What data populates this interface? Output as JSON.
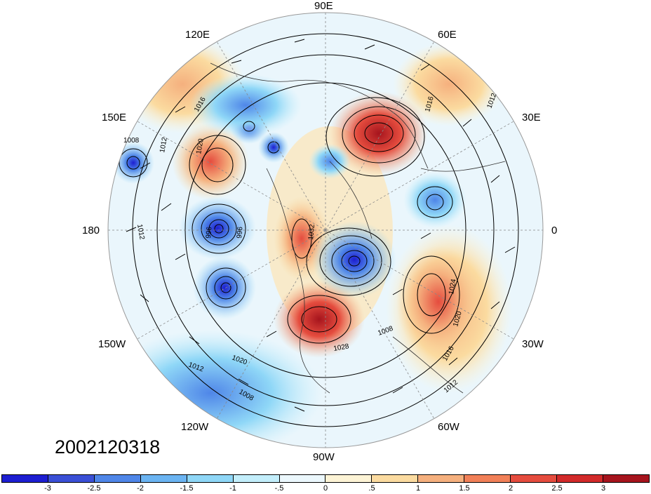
{
  "map": {
    "timestamp": "2002120318",
    "longitude_labels": {
      "e90": "90E",
      "e120": "120E",
      "e60": "60E",
      "e150": "150E",
      "e30": "30E",
      "lon180": "180",
      "lon0": "0",
      "w150": "150W",
      "w30": "30W",
      "w120": "120W",
      "w60": "60W",
      "w90": "90W"
    },
    "contour_labels": [
      "1008",
      "1012",
      "1016",
      "1020",
      "1024",
      "1032",
      "1012",
      "996",
      "996",
      "1016",
      "1012",
      "1020",
      "1008",
      "1012",
      "1020",
      "1016",
      "1012",
      "1028",
      "1008"
    ],
    "anomaly_centers": [
      {
        "name": "siberia-positive",
        "sign": "positive"
      },
      {
        "name": "north-america-positive",
        "sign": "positive"
      },
      {
        "name": "atlantic-positive",
        "sign": "positive"
      },
      {
        "name": "greenland-negative",
        "sign": "negative"
      },
      {
        "name": "bering-negative",
        "sign": "negative"
      },
      {
        "name": "aleutian-negative",
        "sign": "negative"
      },
      {
        "name": "europe-negative",
        "sign": "negative"
      }
    ]
  },
  "colorbar": {
    "colors": [
      "#1d1ed1",
      "#3a4fd6",
      "#4f86e8",
      "#6bb4f2",
      "#8fd7f7",
      "#c3eefb",
      "#ecf8fd",
      "#fdf4d6",
      "#fbdba0",
      "#f5b07e",
      "#f18058",
      "#e54c3e",
      "#d22a2a",
      "#a6141d"
    ],
    "tick_labels": [
      "-3",
      "-2.5",
      "-2",
      "-1.5",
      "-1",
      "-.5",
      "0",
      ".5",
      "1",
      "1.5",
      "2",
      "2.5",
      "3"
    ]
  }
}
